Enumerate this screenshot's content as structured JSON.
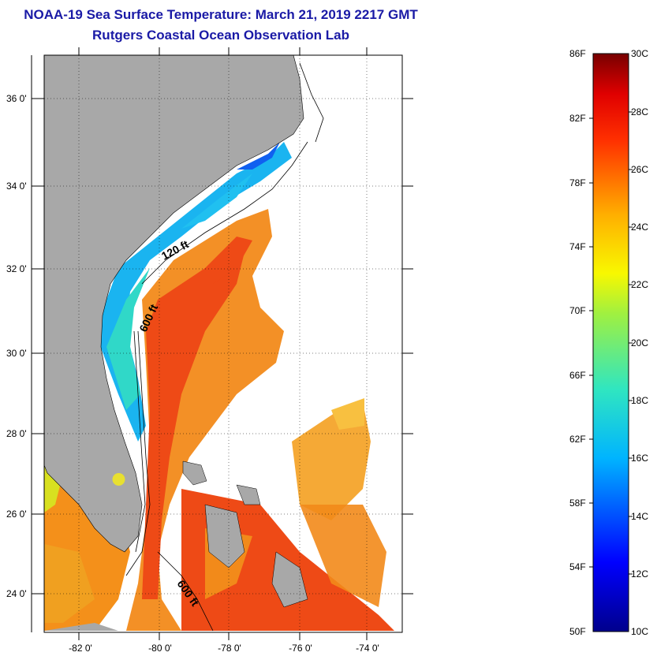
{
  "title": "NOAA-19 Sea Surface Temperature:  March 21, 2019 2217 GMT",
  "subtitle": "Rutgers Coastal Ocean Observation Lab",
  "lat_labels": [
    "36 0'",
    "34 0'",
    "32 0'",
    "30 0'",
    "28 0'",
    "26 0'",
    "24 0'"
  ],
  "lon_labels": [
    "-82 0'",
    "-80 0'",
    "-78 0'",
    "-76 0'",
    "-74 0'"
  ],
  "isobaths": [
    "120 ft",
    "600 ft",
    "600 ft"
  ],
  "colorbar": {
    "fahrenheit": [
      "86F",
      "82F",
      "78F",
      "74F",
      "70F",
      "66F",
      "62F",
      "58F",
      "54F",
      "50F"
    ],
    "celsius": [
      "30C",
      "28C",
      "26C",
      "24C",
      "22C",
      "20C",
      "18C",
      "16C",
      "14C",
      "12C",
      "10C"
    ]
  },
  "colors": {
    "title": "#1a1aa6",
    "land": "#a8a8a8",
    "ocean_missing": "#ffffff"
  }
}
